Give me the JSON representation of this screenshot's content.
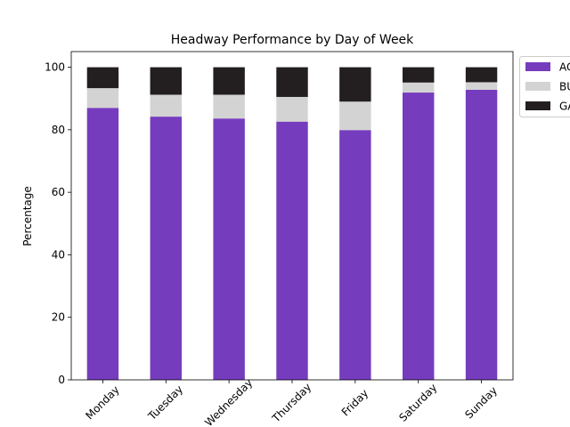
{
  "chart_data": {
    "type": "bar",
    "stacked": true,
    "title": "Headway Performance by Day of Week",
    "xlabel": "",
    "ylabel": "Percentage",
    "ylim": [
      0,
      105
    ],
    "yticks": [
      0,
      20,
      40,
      60,
      80,
      100
    ],
    "categories": [
      "Monday",
      "Tuesday",
      "Wednesday",
      "Thursday",
      "Friday",
      "Saturday",
      "Sunday"
    ],
    "series": [
      {
        "name": "AC",
        "color": "#763cbe",
        "values": [
          87.0,
          84.2,
          83.6,
          82.6,
          79.9,
          91.9,
          92.8
        ]
      },
      {
        "name": "BU",
        "color": "#d3d3d3",
        "values": [
          6.3,
          7.0,
          7.6,
          7.9,
          9.1,
          3.2,
          2.4
        ]
      },
      {
        "name": "GA",
        "color": "#231f20",
        "values": [
          6.7,
          8.8,
          8.8,
          9.5,
          11.0,
          4.9,
          4.8
        ]
      }
    ],
    "legend_position": "outside-right",
    "grid": false
  }
}
